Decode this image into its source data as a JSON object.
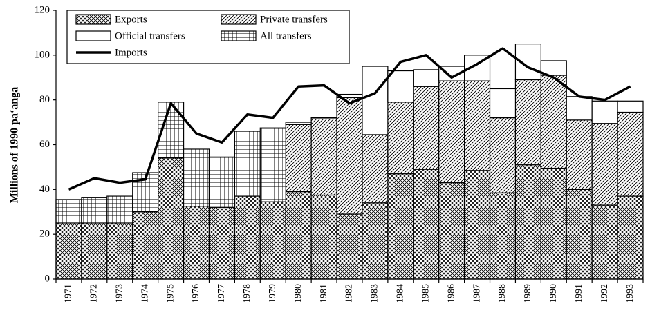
{
  "chart_data": {
    "type": "bar",
    "y_label": "Millions of 1990 pa‘anga",
    "categories": [
      "1971",
      "1972",
      "1973",
      "1974",
      "1975",
      "1976",
      "1977",
      "1978",
      "1979",
      "1980",
      "1981",
      "1982",
      "1983",
      "1984",
      "1985",
      "1986",
      "1987",
      "1988",
      "1989",
      "1990",
      "1991",
      "1992",
      "1993"
    ],
    "ylim": [
      0,
      120
    ],
    "yticks": [
      0,
      20,
      40,
      60,
      80,
      100,
      120
    ],
    "series": [
      {
        "name": "Exports",
        "pattern": "crosshatch",
        "color": "#000000",
        "values": [
          25,
          25,
          25,
          30,
          54,
          32.5,
          32,
          37,
          34.5,
          39,
          37.5,
          29,
          34,
          47,
          49,
          43,
          48.5,
          38.5,
          51,
          49.5,
          40,
          33,
          37
        ]
      },
      {
        "name": "Private transfers",
        "pattern": "diagonal",
        "color": "#000000",
        "values": [
          null,
          null,
          null,
          null,
          null,
          null,
          null,
          null,
          null,
          30,
          34,
          52,
          30.5,
          32,
          37,
          45.5,
          40,
          33.5,
          38,
          41.5,
          31,
          36.5,
          37.5
        ]
      },
      {
        "name": "Official transfers",
        "pattern": "none",
        "color": "#000000",
        "values": [
          null,
          null,
          null,
          null,
          null,
          null,
          null,
          null,
          null,
          1,
          0.5,
          1.5,
          30.5,
          14,
          7.5,
          6.5,
          11.5,
          13,
          16,
          6.5,
          10.5,
          10,
          5
        ]
      },
      {
        "name": "All transfers",
        "pattern": "grid",
        "color": "#000000",
        "values": [
          10.5,
          11.5,
          12,
          17.5,
          25,
          25.5,
          22.5,
          29,
          33,
          null,
          null,
          null,
          null,
          null,
          null,
          null,
          null,
          null,
          null,
          null,
          null,
          null,
          null
        ]
      },
      {
        "name": "Imports",
        "type": "line",
        "color": "#000000",
        "values": [
          40,
          45,
          43,
          44.5,
          78.5,
          65,
          61,
          73.5,
          72,
          86,
          86.5,
          78.5,
          83,
          97,
          100,
          90,
          96,
          103,
          94.5,
          90,
          81.5,
          80,
          86
        ]
      }
    ]
  }
}
